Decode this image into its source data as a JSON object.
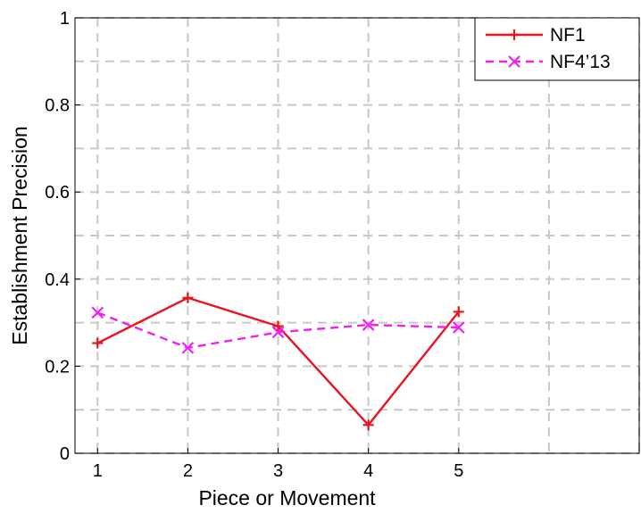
{
  "chart_data": {
    "type": "line",
    "title": "",
    "xlabel": "Piece or Movement",
    "ylabel": "Establishment Precision",
    "x": [
      1,
      2,
      3,
      4,
      5
    ],
    "xlim": [
      0.75,
      7
    ],
    "ylim": [
      0,
      1
    ],
    "xticks": [
      "1",
      "2",
      "3",
      "4",
      "5"
    ],
    "yticks": [
      "0",
      "0.2",
      "0.4",
      "0.6",
      "0.8",
      "1"
    ],
    "grid": true,
    "legend_position": "top-right",
    "series": [
      {
        "name": "NF1",
        "values": [
          0.253,
          0.357,
          0.292,
          0.065,
          0.325
        ],
        "color": "#e8141e",
        "line_style": "solid",
        "marker": "plus"
      },
      {
        "name": "NF4’13",
        "values": [
          0.323,
          0.242,
          0.278,
          0.295,
          0.289
        ],
        "color": "#f020f0",
        "line_style": "dashed",
        "marker": "x"
      }
    ]
  }
}
